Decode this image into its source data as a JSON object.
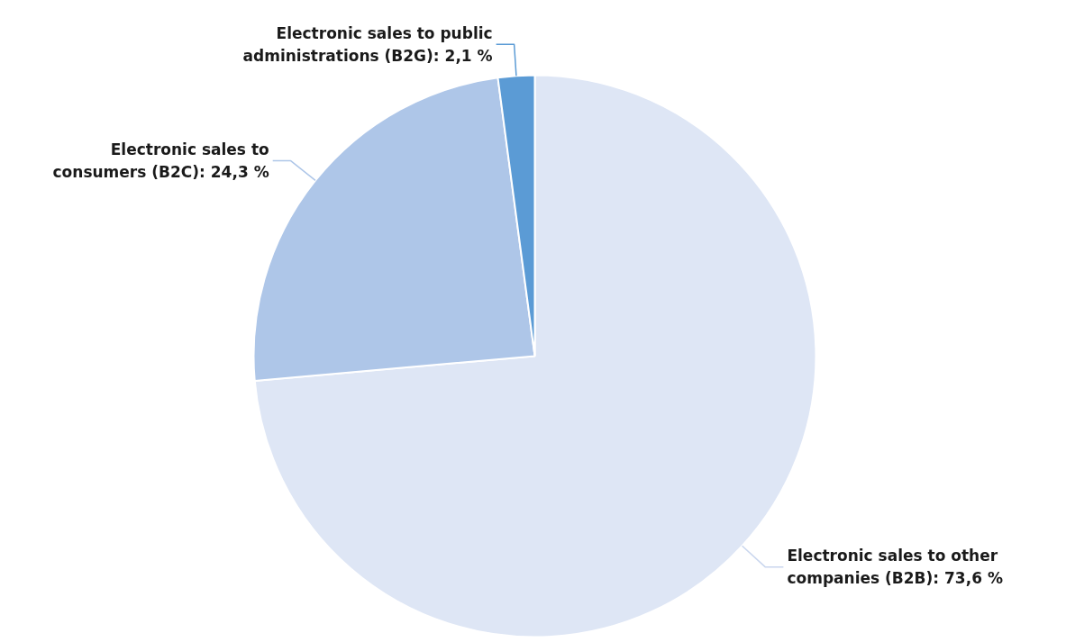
{
  "chart_data": {
    "type": "pie",
    "categories": [
      "Electronic sales to other companies (B2B)",
      "Electronic sales to consumers (B2C)",
      "Electronic sales to public administrations (B2G)"
    ],
    "values": [
      73.6,
      24.3,
      2.1
    ],
    "value_labels": [
      "73,6 %",
      "24,3 %",
      "2,1 %"
    ],
    "colors": [
      "#dee6f5",
      "#aec6e8",
      "#5b9bd5"
    ]
  }
}
